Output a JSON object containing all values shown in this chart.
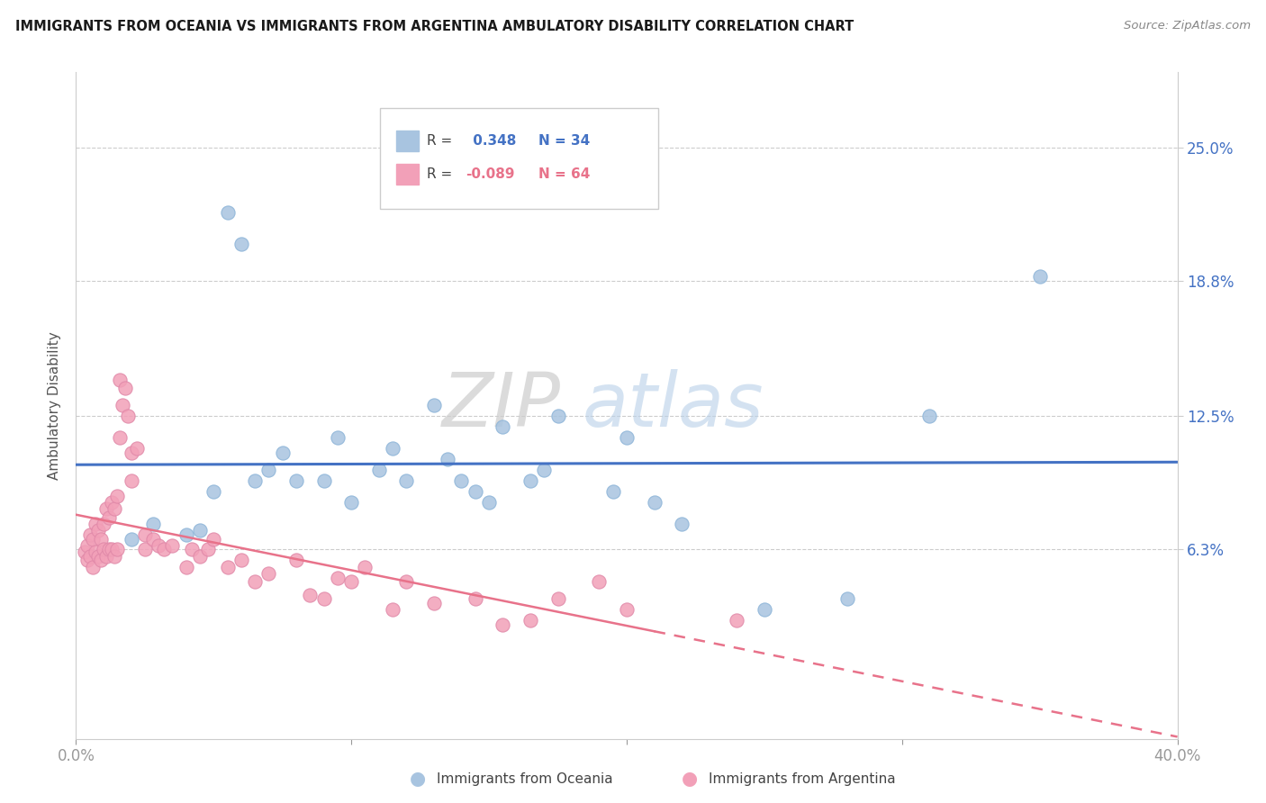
{
  "title": "IMMIGRANTS FROM OCEANIA VS IMMIGRANTS FROM ARGENTINA AMBULATORY DISABILITY CORRELATION CHART",
  "source": "Source: ZipAtlas.com",
  "ylabel": "Ambulatory Disability",
  "ytick_labels": [
    "6.3%",
    "12.5%",
    "18.8%",
    "25.0%"
  ],
  "ytick_values": [
    0.063,
    0.125,
    0.188,
    0.25
  ],
  "xlim": [
    0.0,
    0.4
  ],
  "ylim": [
    -0.025,
    0.285
  ],
  "blue_color": "#A8C4E0",
  "pink_color": "#F2A0B8",
  "line_blue": "#4472C4",
  "line_pink": "#E8728A",
  "watermark_zip": "ZIP",
  "watermark_atlas": "atlas",
  "legend_blue_r": "0.348",
  "legend_blue_n": "34",
  "legend_pink_r": "-0.089",
  "legend_pink_n": "64",
  "oceania_x": [
    0.02,
    0.028,
    0.04,
    0.045,
    0.05,
    0.055,
    0.06,
    0.065,
    0.07,
    0.075,
    0.08,
    0.09,
    0.095,
    0.1,
    0.11,
    0.115,
    0.12,
    0.13,
    0.135,
    0.14,
    0.145,
    0.15,
    0.155,
    0.165,
    0.17,
    0.175,
    0.195,
    0.2,
    0.21,
    0.22,
    0.25,
    0.28,
    0.31,
    0.35
  ],
  "oceania_y": [
    0.068,
    0.075,
    0.07,
    0.072,
    0.09,
    0.22,
    0.205,
    0.095,
    0.1,
    0.108,
    0.095,
    0.095,
    0.115,
    0.085,
    0.1,
    0.11,
    0.095,
    0.13,
    0.105,
    0.095,
    0.09,
    0.085,
    0.12,
    0.095,
    0.1,
    0.125,
    0.09,
    0.115,
    0.085,
    0.075,
    0.035,
    0.04,
    0.125,
    0.19
  ],
  "argentina_x": [
    0.003,
    0.004,
    0.004,
    0.005,
    0.005,
    0.006,
    0.006,
    0.007,
    0.007,
    0.008,
    0.008,
    0.009,
    0.009,
    0.01,
    0.01,
    0.011,
    0.011,
    0.012,
    0.012,
    0.013,
    0.013,
    0.014,
    0.014,
    0.015,
    0.015,
    0.016,
    0.016,
    0.017,
    0.018,
    0.019,
    0.02,
    0.02,
    0.022,
    0.025,
    0.025,
    0.028,
    0.03,
    0.032,
    0.035,
    0.04,
    0.042,
    0.045,
    0.048,
    0.05,
    0.055,
    0.06,
    0.065,
    0.07,
    0.08,
    0.085,
    0.09,
    0.095,
    0.1,
    0.105,
    0.115,
    0.12,
    0.13,
    0.145,
    0.155,
    0.165,
    0.175,
    0.19,
    0.2,
    0.24
  ],
  "argentina_y": [
    0.062,
    0.065,
    0.058,
    0.07,
    0.06,
    0.068,
    0.055,
    0.075,
    0.062,
    0.072,
    0.06,
    0.068,
    0.058,
    0.075,
    0.063,
    0.082,
    0.06,
    0.078,
    0.063,
    0.085,
    0.063,
    0.082,
    0.06,
    0.088,
    0.063,
    0.142,
    0.115,
    0.13,
    0.138,
    0.125,
    0.095,
    0.108,
    0.11,
    0.07,
    0.063,
    0.068,
    0.065,
    0.063,
    0.065,
    0.055,
    0.063,
    0.06,
    0.063,
    0.068,
    0.055,
    0.058,
    0.048,
    0.052,
    0.058,
    0.042,
    0.04,
    0.05,
    0.048,
    0.055,
    0.035,
    0.048,
    0.038,
    0.04,
    0.028,
    0.03,
    0.04,
    0.048,
    0.035,
    0.03
  ]
}
